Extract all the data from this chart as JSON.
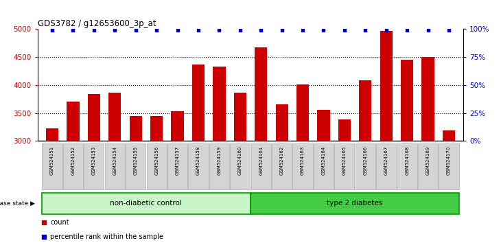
{
  "title": "GDS3782 / g12653600_3p_at",
  "samples": [
    "GSM524151",
    "GSM524152",
    "GSM524153",
    "GSM524154",
    "GSM524155",
    "GSM524156",
    "GSM524157",
    "GSM524158",
    "GSM524159",
    "GSM524160",
    "GSM524161",
    "GSM524162",
    "GSM524163",
    "GSM524164",
    "GSM524165",
    "GSM524166",
    "GSM524167",
    "GSM524168",
    "GSM524169",
    "GSM524170"
  ],
  "counts": [
    3220,
    3710,
    3840,
    3860,
    3450,
    3450,
    3530,
    4370,
    4330,
    3860,
    4680,
    3650,
    4010,
    3560,
    3380,
    4090,
    4970,
    4450,
    4500,
    3190
  ],
  "percentile_all_99": true,
  "bar_color": "#cc0000",
  "percentile_color": "#0000cc",
  "ylim_left": [
    3000,
    5000
  ],
  "ylim_right": [
    0,
    100
  ],
  "yticks_left": [
    3000,
    3500,
    4000,
    4500,
    5000
  ],
  "yticks_right": [
    0,
    25,
    50,
    75,
    100
  ],
  "non_diabetic_count": 10,
  "type2_count": 10,
  "non_diabetic_label": "non-diabetic control",
  "type2_label": "type 2 diabetes",
  "disease_state_label": "disease state",
  "legend_count_label": "count",
  "legend_pct_label": "percentile rank within the sample",
  "group_bg_light": "#c8f5c8",
  "group_bg_dark": "#44cc44",
  "group_border": "#009900",
  "xlabel_bg": "#d4d4d4",
  "xlabel_border": "#aaaaaa"
}
